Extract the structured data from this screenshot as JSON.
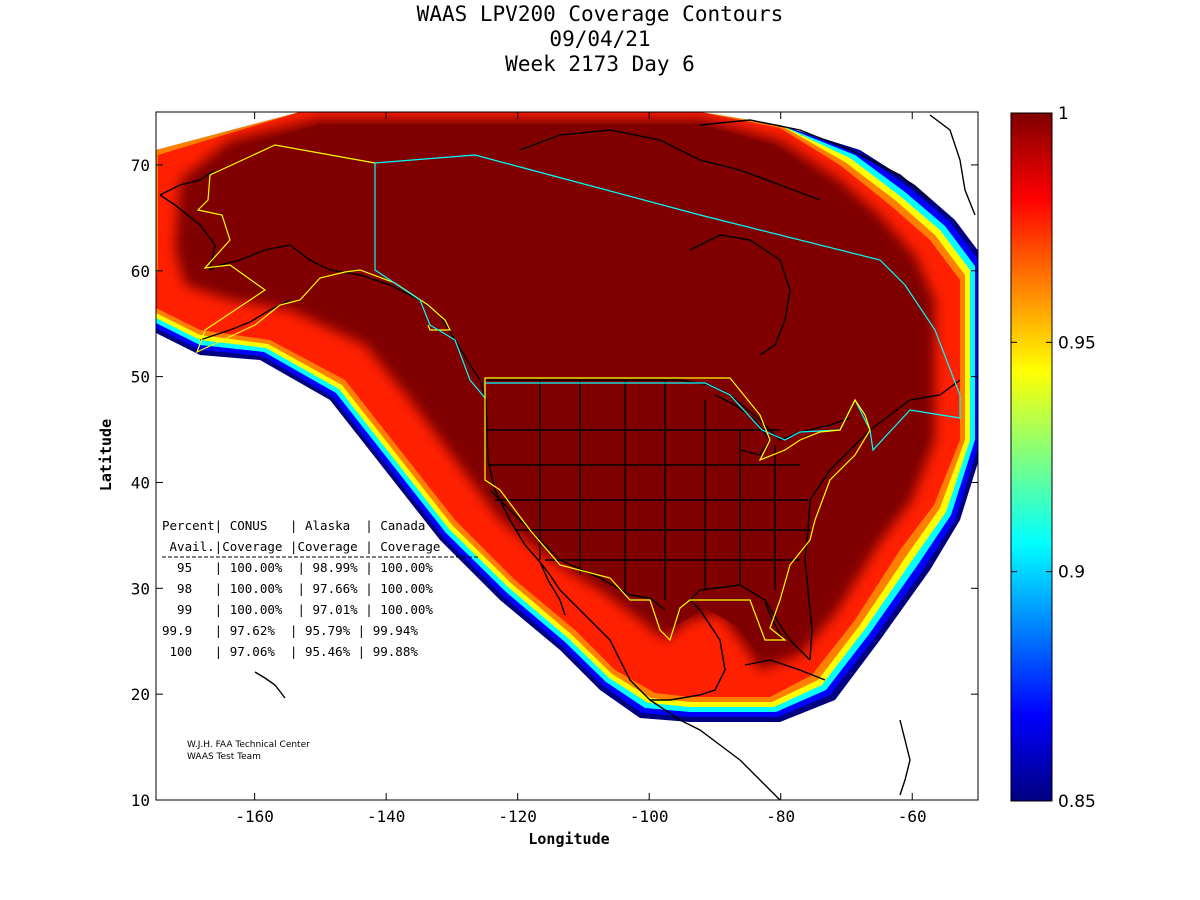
{
  "title": {
    "line1": "WAAS LPV200 Coverage Contours",
    "line2": "09/04/21",
    "line3": "Week 2173 Day 6"
  },
  "axes": {
    "xlabel": "Longitude",
    "ylabel": "Latitude",
    "xticks": [
      "-160",
      "-140",
      "-120",
      "-100",
      "-80",
      "-60"
    ],
    "yticks": [
      "10",
      "20",
      "30",
      "40",
      "50",
      "60",
      "70"
    ]
  },
  "colorbar": {
    "ticks": [
      "0.85",
      "0.9",
      "0.95",
      "1"
    ],
    "range": [
      0.85,
      1
    ]
  },
  "colors": {
    "max": "#800000",
    "red": "#ff0000",
    "orange": "#ff8000",
    "yellow": "#ffff00",
    "cyan": "#00ffff",
    "blue": "#0000ff",
    "navy": "#000080"
  },
  "table": {
    "header1": "Percent| CONUS   | Alaska  | Canada",
    "header2": " Avail.|Coverage |Coverage | Coverage",
    "rows": [
      "  95   | 100.00%  | 98.99% | 100.00%",
      "  98   | 100.00%  | 97.66% | 100.00%",
      "  99   | 100.00%  | 97.01% | 100.00%",
      "99.9   | 97.62%  | 95.79% | 99.94%",
      " 100   | 97.06%  | 95.46% | 99.88%"
    ]
  },
  "credit": {
    "line1": "W.J.H. FAA Technical Center",
    "line2": "WAAS Test Team"
  },
  "chart_data": {
    "type": "heatmap",
    "title": "WAAS LPV200 Coverage Contours",
    "subtitle": "09/04/21 Week 2173 Day 6",
    "xlabel": "Longitude",
    "ylabel": "Latitude",
    "xlim": [
      -175,
      -50
    ],
    "ylim": [
      10,
      75
    ],
    "colorbar_range": [
      0.85,
      1
    ],
    "colorbar_ticks": [
      0.85,
      0.9,
      0.95,
      1
    ],
    "coverage_table": {
      "columns": [
        "Percent Avail.",
        "CONUS Coverage",
        "Alaska Coverage",
        "Canada Coverage"
      ],
      "rows": [
        [
          "95",
          "100.00%",
          "98.99%",
          "100.00%"
        ],
        [
          "98",
          "100.00%",
          "97.66%",
          "100.00%"
        ],
        [
          "99",
          "100.00%",
          "97.01%",
          "100.00%"
        ],
        [
          "99.9",
          "97.62%",
          "95.79%",
          "99.94%"
        ],
        [
          "100",
          "97.06%",
          "95.46%",
          "99.88%"
        ]
      ]
    }
  }
}
